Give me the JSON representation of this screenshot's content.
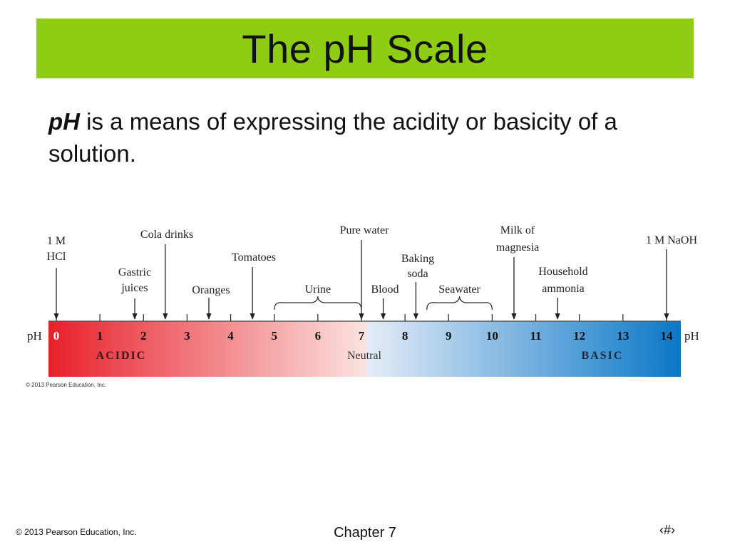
{
  "slide": {
    "title": "The pH Scale",
    "body_term": "pH",
    "body_rest": " is a means of expressing the acidity or basicity of a solution."
  },
  "diagram": {
    "axis_label": "pH",
    "ticks": [
      "0",
      "1",
      "2",
      "3",
      "4",
      "5",
      "6",
      "7",
      "8",
      "9",
      "10",
      "11",
      "12",
      "13",
      "14"
    ],
    "acidic_label": "ACIDIC",
    "neutral_label": "Neutral",
    "basic_label": "BASIC",
    "copyright": "© 2013 Pearson Education, Inc.",
    "colors": {
      "acid": "#e8202a",
      "neutral": "#ffffff",
      "base": "#0a78c8"
    },
    "substances": [
      {
        "lines": [
          "1 M",
          "HCl"
        ],
        "ph": 0
      },
      {
        "lines": [
          "Gastric",
          "juices"
        ],
        "ph": 1.8
      },
      {
        "lines": [
          "Cola drinks"
        ],
        "ph": 2.5
      },
      {
        "lines": [
          "Oranges"
        ],
        "ph": 3.5
      },
      {
        "lines": [
          "Tomatoes"
        ],
        "ph": 4.5
      },
      {
        "lines": [
          "Urine"
        ],
        "ph_range": [
          5,
          7
        ]
      },
      {
        "lines": [
          "Pure water"
        ],
        "ph": 7
      },
      {
        "lines": [
          "Blood"
        ],
        "ph": 7.5
      },
      {
        "lines": [
          "Baking",
          "soda"
        ],
        "ph": 8.25
      },
      {
        "lines": [
          "Seawater"
        ],
        "ph_range": [
          8.5,
          10
        ]
      },
      {
        "lines": [
          "Milk of",
          "magnesia"
        ],
        "ph": 10.5
      },
      {
        "lines": [
          "Household",
          "ammonia"
        ],
        "ph": 11.5
      },
      {
        "lines": [
          "1 M NaOH"
        ],
        "ph": 14
      }
    ]
  },
  "footer": {
    "copyright": "© 2013 Pearson Education, Inc.",
    "chapter": "Chapter 7",
    "page": "‹#›"
  }
}
